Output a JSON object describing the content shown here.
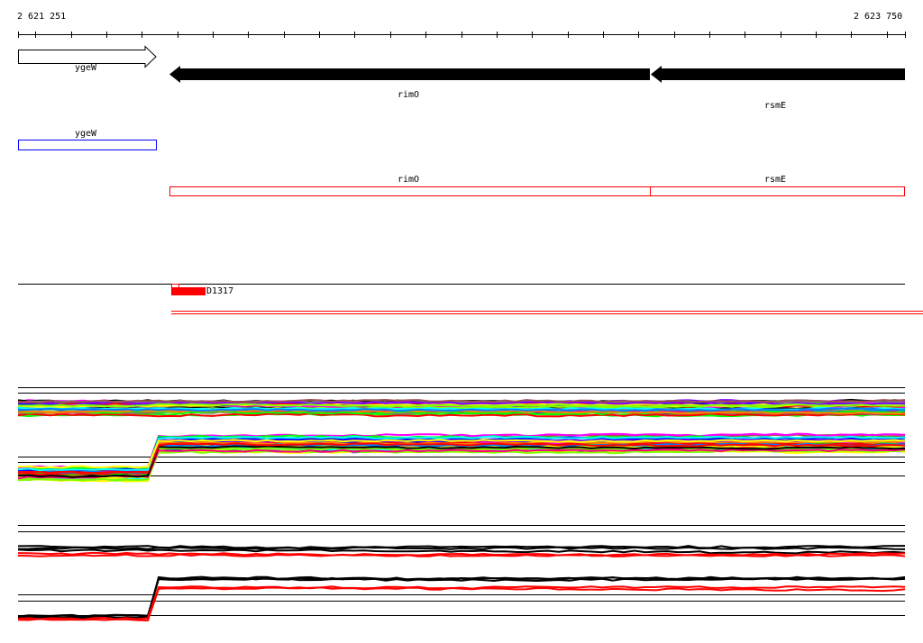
{
  "ruler": {
    "start_label": "2 621 251",
    "end_label": "2 623 750"
  },
  "genes": [
    {
      "name": "ygeW",
      "strand": "+",
      "style": "outline"
    },
    {
      "name": "rimO",
      "strand": "-",
      "style": "filled"
    },
    {
      "name": "rsmE",
      "strand": "-",
      "style": "filled"
    }
  ],
  "cds_track": [
    {
      "name": "ygeW",
      "color": "#0000ff"
    },
    {
      "name": "rimO",
      "color": "#ff0000"
    },
    {
      "name": "rsmE",
      "color": "#ff0000"
    }
  ],
  "feature_track": {
    "label": "D1317",
    "color": "#ff0000"
  },
  "colors": {
    "accent": "#ff0000",
    "cds_plus": "#0000ff"
  }
}
